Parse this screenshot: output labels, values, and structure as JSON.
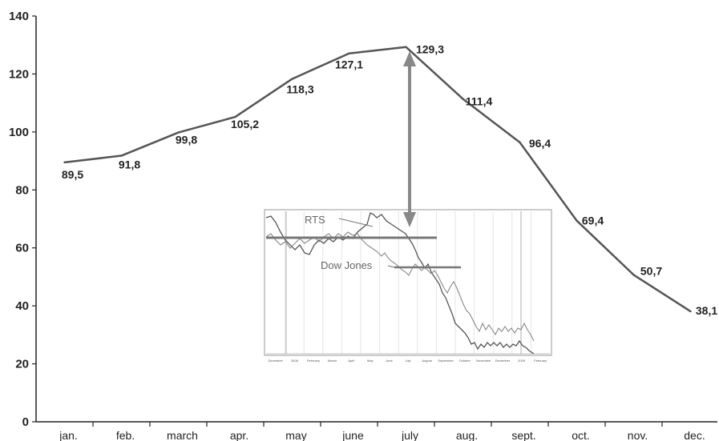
{
  "chart_data": {
    "type": "line",
    "categories": [
      "jan.",
      "feb.",
      "march",
      "apr.",
      "may",
      "june",
      "july",
      "aug.",
      "sept.",
      "oct.",
      "nov.",
      "dec."
    ],
    "values": [
      89.5,
      91.8,
      99.8,
      105.2,
      118.3,
      127.1,
      129.3,
      111.4,
      96.4,
      69.4,
      50.7,
      38.1
    ],
    "value_labels": [
      "89,5",
      "91,8",
      "99,8",
      "105,2",
      "118,3",
      "127,1",
      "129,3",
      "111,4",
      "96,4",
      "69,4",
      "50,7",
      "38,1"
    ],
    "yticks": [
      0,
      20,
      40,
      60,
      80,
      100,
      120,
      140
    ],
    "ylim": [
      0,
      140
    ],
    "grid": false,
    "line_color": "#555555",
    "title": "",
    "xlabel": "",
    "ylabel": "",
    "inset": {
      "series_labels": [
        "RTS",
        "Dow Jones"
      ],
      "x_ticks": [
        "December",
        "2008",
        "February",
        "March",
        "April",
        "May",
        "June",
        "July",
        "August",
        "September",
        "October",
        "November",
        "December",
        "2009",
        "February"
      ]
    }
  }
}
